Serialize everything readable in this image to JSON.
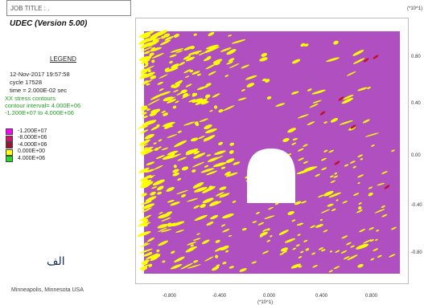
{
  "header": {
    "job_title": "JOB TITLE : .",
    "version": "UDEC (Version 5.00)"
  },
  "legend": {
    "title": "LEGEND",
    "date": "12-Nov-2017 19:57:58",
    "cycle": "cycle   17528",
    "time": "time  = 2.000E-02 sec",
    "contour_name": "XX stress contours",
    "contour_interval": "contour interval= 4.000E+06",
    "contour_range": "-1.200E+07 to  4.000E+06",
    "entries": [
      {
        "label": "-1.200E+07",
        "color": "#ff00ff"
      },
      {
        "label": "-8.000E+06",
        "color": "#d4136a"
      },
      {
        "label": "-4.000E+06",
        "color": "#a01030"
      },
      {
        "label": "0.000E+00",
        "color": "#ffff00"
      },
      {
        "label": "4.000E+06",
        "color": "#22dd22"
      }
    ]
  },
  "overlay_label": "الف",
  "footer": "Minneapolis, Minnesota  USA",
  "axes": {
    "y_scale": "(*10^1)",
    "y_ticks": [
      "0.80",
      "0.40",
      "0.00",
      "-0.40",
      "-0.80"
    ],
    "x_ticks": [
      "-0.800",
      "-0.400",
      "0.000",
      "0.400",
      "0.800"
    ],
    "x_scale": "(*10^1)"
  },
  "colors": {
    "background_stress": "#b04fc0",
    "tension_zone": "#ffff00",
    "high_compression": "#c0102a",
    "opening": "#ffffff"
  }
}
